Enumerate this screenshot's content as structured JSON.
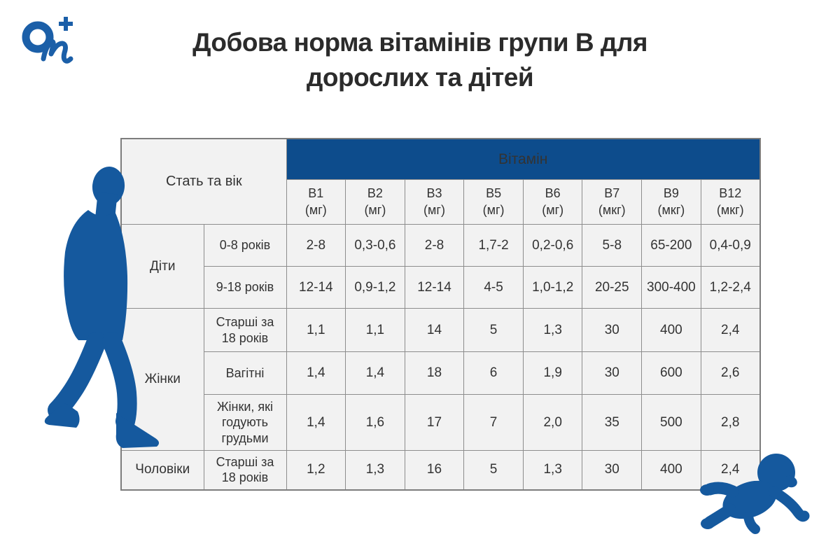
{
  "logo": {
    "text": "On+"
  },
  "title": {
    "line1": "Добова норма вітамінів групи В для",
    "line2": "дорослих та дітей"
  },
  "table": {
    "corner_header": "Стать та вік",
    "vitamin_header": "Вітамін",
    "columns": [
      {
        "name": "B1",
        "unit": "(мг)"
      },
      {
        "name": "B2",
        "unit": "(мг)"
      },
      {
        "name": "B3",
        "unit": "(мг)"
      },
      {
        "name": "B5",
        "unit": "(мг)"
      },
      {
        "name": "B6",
        "unit": "(мг)"
      },
      {
        "name": "B7",
        "unit": "(мкг)"
      },
      {
        "name": "B9",
        "unit": "(мкг)"
      },
      {
        "name": "B12",
        "unit": "(мкг)"
      }
    ]
  },
  "chart_data": {
    "type": "table",
    "title": "Добова норма вітамінів групи В для дорослих та дітей",
    "columns": [
      "Стать",
      "Вік",
      "B1 (мг)",
      "B2 (мг)",
      "B3 (мг)",
      "B5 (мг)",
      "B6 (мг)",
      "B7 (мкг)",
      "B9 (мкг)",
      "B12 (мкг)"
    ],
    "rows": [
      [
        "Діти",
        "0-8 років",
        "2-8",
        "0,3-0,6",
        "2-8",
        "1,7-2",
        "0,2-0,6",
        "5-8",
        "65-200",
        "0,4-0,9"
      ],
      [
        "Діти",
        "9-18 років",
        "12-14",
        "0,9-1,2",
        "12-14",
        "4-5",
        "1,0-1,2",
        "20-25",
        "300-400",
        "1,2-2,4"
      ],
      [
        "Жінки",
        "Старші за 18 років",
        "1,1",
        "1,1",
        "14",
        "5",
        "1,3",
        "30",
        "400",
        "2,4"
      ],
      [
        "Жінки",
        "Вагітні",
        "1,4",
        "1,4",
        "18",
        "6",
        "1,9",
        "30",
        "600",
        "2,6"
      ],
      [
        "Жінки",
        "Жінки, які годують грудьми",
        "1,4",
        "1,6",
        "17",
        "7",
        "2,0",
        "35",
        "500",
        "2,8"
      ],
      [
        "Чоловіки",
        "Старші за 18 років",
        "1,2",
        "1,3",
        "16",
        "5",
        "1,3",
        "30",
        "400",
        "2,4"
      ]
    ]
  },
  "colors": {
    "brand_blue": "#1b5fa8",
    "header_blue": "#0d4c8c",
    "silhouette_blue": "#15599e",
    "cell_background": "#f2f2f2",
    "border_gray": "#8d8d8d",
    "title_text": "#2b2b2b",
    "header_text": "#ffffff"
  }
}
